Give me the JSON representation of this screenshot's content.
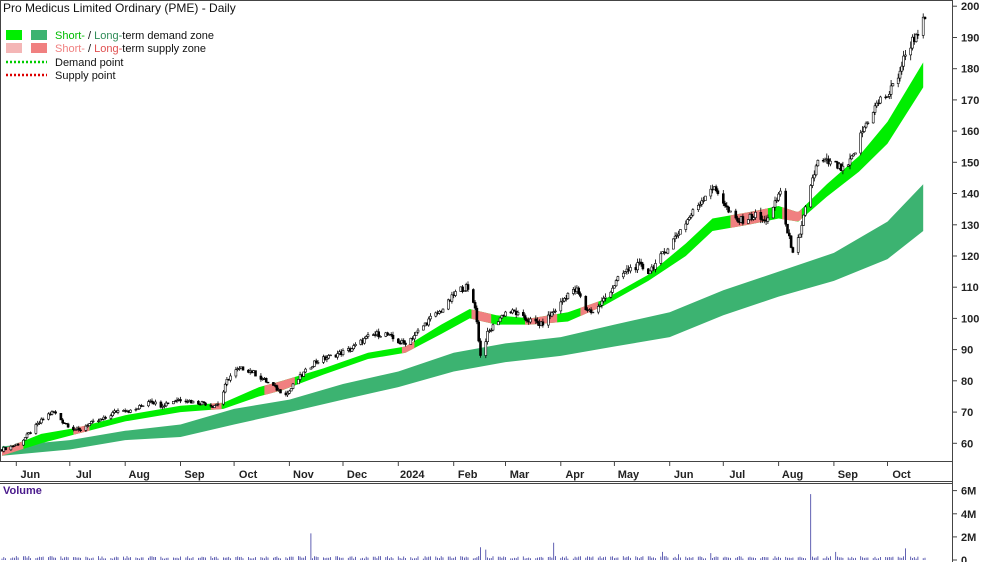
{
  "header": {
    "title": "Pro Medicus Limited Ordinary (PME) - Daily"
  },
  "legend": {
    "demand_zone": {
      "short": "Short-",
      "sep": " / ",
      "long": "Long-",
      "rest": "term demand zone"
    },
    "supply_zone": {
      "short": "Short-",
      "sep": " / ",
      "long": "Long-",
      "rest": "term supply zone"
    },
    "demand_point": "Demand point",
    "supply_point": "Supply point"
  },
  "volume_panel": {
    "label": "Volume"
  },
  "colors": {
    "short_demand": "#00ee00",
    "long_demand": "#3cb371",
    "short_supply": "#f4b6b6",
    "long_supply": "#f08080",
    "demand_point": "#00cc00",
    "supply_point": "#dd0000",
    "volume_bar": "#3a3aa0",
    "candle": "#000000"
  },
  "chart_data": {
    "type": "candlestick",
    "price_axis": {
      "ylim": [
        54,
        202
      ],
      "ticks": [
        200,
        190,
        180,
        170,
        160,
        150,
        140,
        130,
        120,
        110,
        100,
        90,
        80,
        70,
        60
      ]
    },
    "volume_axis": {
      "ylim": [
        0,
        6.4
      ],
      "ticks": [
        6,
        4,
        2,
        0
      ],
      "tick_labels": [
        "6M",
        "4M",
        "2M",
        "0"
      ]
    },
    "x_range": {
      "start": "2023-05-24",
      "end": "2024-10-22"
    },
    "month_ticks": [
      {
        "label": "Jun",
        "date": "2023-06-01"
      },
      {
        "label": "Jul",
        "date": "2023-07-01"
      },
      {
        "label": "Aug",
        "date": "2023-08-01"
      },
      {
        "label": "Sep",
        "date": "2023-09-01"
      },
      {
        "label": "Oct",
        "date": "2023-10-01"
      },
      {
        "label": "Nov",
        "date": "2023-11-01"
      },
      {
        "label": "Dec",
        "date": "2023-12-01"
      },
      {
        "label": "2024",
        "date": "2024-01-01"
      },
      {
        "label": "Feb",
        "date": "2024-02-01"
      },
      {
        "label": "Mar",
        "date": "2024-03-01"
      },
      {
        "label": "Apr",
        "date": "2024-04-01"
      },
      {
        "label": "May",
        "date": "2024-05-01"
      },
      {
        "label": "Jun",
        "date": "2024-06-01"
      },
      {
        "label": "Jul",
        "date": "2024-07-01"
      },
      {
        "label": "Aug",
        "date": "2024-08-01"
      },
      {
        "label": "Sep",
        "date": "2024-09-01"
      },
      {
        "label": "Oct",
        "date": "2024-10-01"
      }
    ],
    "price_path": [
      [
        "2023-05-24",
        58
      ],
      [
        "2023-05-29",
        59
      ],
      [
        "2023-06-03",
        60
      ],
      [
        "2023-06-08",
        63
      ],
      [
        "2023-06-13",
        66
      ],
      [
        "2023-06-18",
        69
      ],
      [
        "2023-06-22",
        70
      ],
      [
        "2023-06-27",
        67
      ],
      [
        "2023-07-02",
        65
      ],
      [
        "2023-07-06",
        64
      ],
      [
        "2023-07-11",
        66
      ],
      [
        "2023-07-16",
        67
      ],
      [
        "2023-07-21",
        68
      ],
      [
        "2023-07-26",
        70
      ],
      [
        "2023-07-31",
        71
      ],
      [
        "2023-08-05",
        70
      ],
      [
        "2023-08-10",
        72
      ],
      [
        "2023-08-15",
        74
      ],
      [
        "2023-08-20",
        72
      ],
      [
        "2023-08-25",
        73
      ],
      [
        "2023-08-30",
        74
      ],
      [
        "2023-09-04",
        74
      ],
      [
        "2023-09-09",
        73
      ],
      [
        "2023-09-14",
        73
      ],
      [
        "2023-09-19",
        72
      ],
      [
        "2023-09-23",
        73
      ],
      [
        "2023-09-27",
        80
      ],
      [
        "2023-10-01",
        83
      ],
      [
        "2023-10-06",
        84
      ],
      [
        "2023-10-11",
        83
      ],
      [
        "2023-10-16",
        81
      ],
      [
        "2023-10-21",
        79
      ],
      [
        "2023-10-26",
        77
      ],
      [
        "2023-10-31",
        76
      ],
      [
        "2023-11-05",
        80
      ],
      [
        "2023-11-10",
        83
      ],
      [
        "2023-11-15",
        86
      ],
      [
        "2023-11-20",
        87
      ],
      [
        "2023-11-25",
        88
      ],
      [
        "2023-11-30",
        89
      ],
      [
        "2023-12-05",
        90
      ],
      [
        "2023-12-10",
        92
      ],
      [
        "2023-12-15",
        94
      ],
      [
        "2023-12-20",
        95
      ],
      [
        "2023-12-25",
        95
      ],
      [
        "2023-12-30",
        93
      ],
      [
        "2024-01-04",
        92
      ],
      [
        "2024-01-09",
        94
      ],
      [
        "2024-01-14",
        97
      ],
      [
        "2024-01-19",
        100
      ],
      [
        "2024-01-24",
        102
      ],
      [
        "2024-01-29",
        105
      ],
      [
        "2024-02-03",
        109
      ],
      [
        "2024-02-08",
        110
      ],
      [
        "2024-02-13",
        104
      ],
      [
        "2024-02-16",
        88
      ],
      [
        "2024-02-20",
        95
      ],
      [
        "2024-02-25",
        99
      ],
      [
        "2024-03-01",
        102
      ],
      [
        "2024-03-06",
        102
      ],
      [
        "2024-03-11",
        100
      ],
      [
        "2024-03-16",
        99
      ],
      [
        "2024-03-21",
        98
      ],
      [
        "2024-03-26",
        101
      ],
      [
        "2024-03-31",
        104
      ],
      [
        "2024-04-05",
        108
      ],
      [
        "2024-04-10",
        109
      ],
      [
        "2024-04-15",
        103
      ],
      [
        "2024-04-20",
        102
      ],
      [
        "2024-04-25",
        106
      ],
      [
        "2024-04-30",
        110
      ],
      [
        "2024-05-05",
        114
      ],
      [
        "2024-05-10",
        116
      ],
      [
        "2024-05-15",
        117
      ],
      [
        "2024-05-20",
        115
      ],
      [
        "2024-05-25",
        118
      ],
      [
        "2024-05-30",
        122
      ],
      [
        "2024-06-04",
        126
      ],
      [
        "2024-06-09",
        130
      ],
      [
        "2024-06-14",
        134
      ],
      [
        "2024-06-19",
        138
      ],
      [
        "2024-06-24",
        142
      ],
      [
        "2024-06-29",
        140
      ],
      [
        "2024-07-04",
        134
      ],
      [
        "2024-07-09",
        131
      ],
      [
        "2024-07-14",
        132
      ],
      [
        "2024-07-19",
        133
      ],
      [
        "2024-07-24",
        131
      ],
      [
        "2024-07-29",
        135
      ],
      [
        "2024-08-02",
        141
      ],
      [
        "2024-08-06",
        127
      ],
      [
        "2024-08-09",
        122
      ],
      [
        "2024-08-13",
        126
      ],
      [
        "2024-08-16",
        135
      ],
      [
        "2024-08-19",
        143
      ],
      [
        "2024-08-23",
        150
      ],
      [
        "2024-08-28",
        150
      ],
      [
        "2024-09-02",
        149
      ],
      [
        "2024-09-07",
        147
      ],
      [
        "2024-09-12",
        152
      ],
      [
        "2024-09-17",
        160
      ],
      [
        "2024-09-22",
        166
      ],
      [
        "2024-09-27",
        170
      ],
      [
        "2024-10-02",
        172
      ],
      [
        "2024-10-07",
        178
      ],
      [
        "2024-10-12",
        186
      ],
      [
        "2024-10-17",
        191
      ],
      [
        "2024-10-21",
        195
      ]
    ],
    "short_zone": [
      [
        "2023-05-24",
        58,
        56
      ],
      [
        "2023-06-15",
        63,
        60
      ],
      [
        "2023-07-05",
        65,
        63
      ],
      [
        "2023-08-01",
        69,
        67
      ],
      [
        "2023-09-01",
        72,
        70
      ],
      [
        "2023-09-25",
        73,
        71
      ],
      [
        "2023-10-15",
        78,
        75
      ],
      [
        "2023-10-28",
        80,
        77
      ],
      [
        "2023-11-20",
        84,
        82
      ],
      [
        "2023-12-15",
        89,
        87
      ],
      [
        "2024-01-05",
        91,
        89
      ],
      [
        "2024-01-25",
        98,
        95
      ],
      [
        "2024-02-10",
        103,
        100
      ],
      [
        "2024-02-25",
        101,
        98
      ],
      [
        "2024-03-15",
        100,
        98
      ],
      [
        "2024-04-05",
        102,
        99
      ],
      [
        "2024-04-25",
        106,
        104
      ],
      [
        "2024-05-20",
        114,
        112
      ],
      [
        "2024-06-10",
        124,
        120
      ],
      [
        "2024-06-25",
        132,
        128
      ],
      [
        "2024-07-15",
        134,
        130
      ],
      [
        "2024-08-01",
        136,
        132
      ],
      [
        "2024-08-12",
        134,
        131
      ],
      [
        "2024-08-28",
        143,
        139
      ],
      [
        "2024-09-15",
        152,
        147
      ],
      [
        "2024-10-01",
        163,
        156
      ],
      [
        "2024-10-21",
        182,
        174
      ]
    ],
    "long_zone": [
      [
        "2023-05-24",
        59,
        56
      ],
      [
        "2023-07-01",
        61,
        58
      ],
      [
        "2023-08-01",
        64,
        61
      ],
      [
        "2023-09-01",
        66,
        62
      ],
      [
        "2023-10-01",
        71,
        66
      ],
      [
        "2023-11-01",
        74,
        70
      ],
      [
        "2023-12-01",
        79,
        74
      ],
      [
        "2024-01-01",
        83,
        78
      ],
      [
        "2024-02-01",
        89,
        83
      ],
      [
        "2024-03-01",
        92,
        86
      ],
      [
        "2024-04-01",
        94,
        88
      ],
      [
        "2024-05-01",
        98,
        91
      ],
      [
        "2024-06-01",
        102,
        94
      ],
      [
        "2024-07-01",
        109,
        101
      ],
      [
        "2024-08-01",
        115,
        107
      ],
      [
        "2024-09-01",
        121,
        112
      ],
      [
        "2024-10-01",
        131,
        119
      ],
      [
        "2024-10-21",
        143,
        128
      ]
    ],
    "supply_segments": [
      [
        "2023-05-24",
        "2023-06-05"
      ],
      [
        "2023-07-03",
        "2023-07-12"
      ],
      [
        "2023-09-18",
        "2023-09-24"
      ],
      [
        "2023-10-18",
        "2023-11-04"
      ],
      [
        "2024-01-03",
        "2024-01-10"
      ],
      [
        "2024-02-11",
        "2024-02-22"
      ],
      [
        "2024-03-12",
        "2024-03-30"
      ],
      [
        "2024-04-12",
        "2024-04-22"
      ],
      [
        "2024-07-05",
        "2024-07-26"
      ],
      [
        "2024-08-03",
        "2024-08-14"
      ]
    ],
    "volume_spikes": [
      [
        "2023-11-13",
        2.3
      ],
      [
        "2024-02-16",
        1.1
      ],
      [
        "2024-02-19",
        0.9
      ],
      [
        "2024-03-28",
        1.5
      ],
      [
        "2024-05-28",
        0.7
      ],
      [
        "2024-06-06",
        0.5
      ],
      [
        "2024-06-24",
        0.6
      ],
      [
        "2024-08-19",
        5.7
      ],
      [
        "2024-09-02",
        0.7
      ],
      [
        "2024-10-11",
        1.0
      ]
    ]
  }
}
